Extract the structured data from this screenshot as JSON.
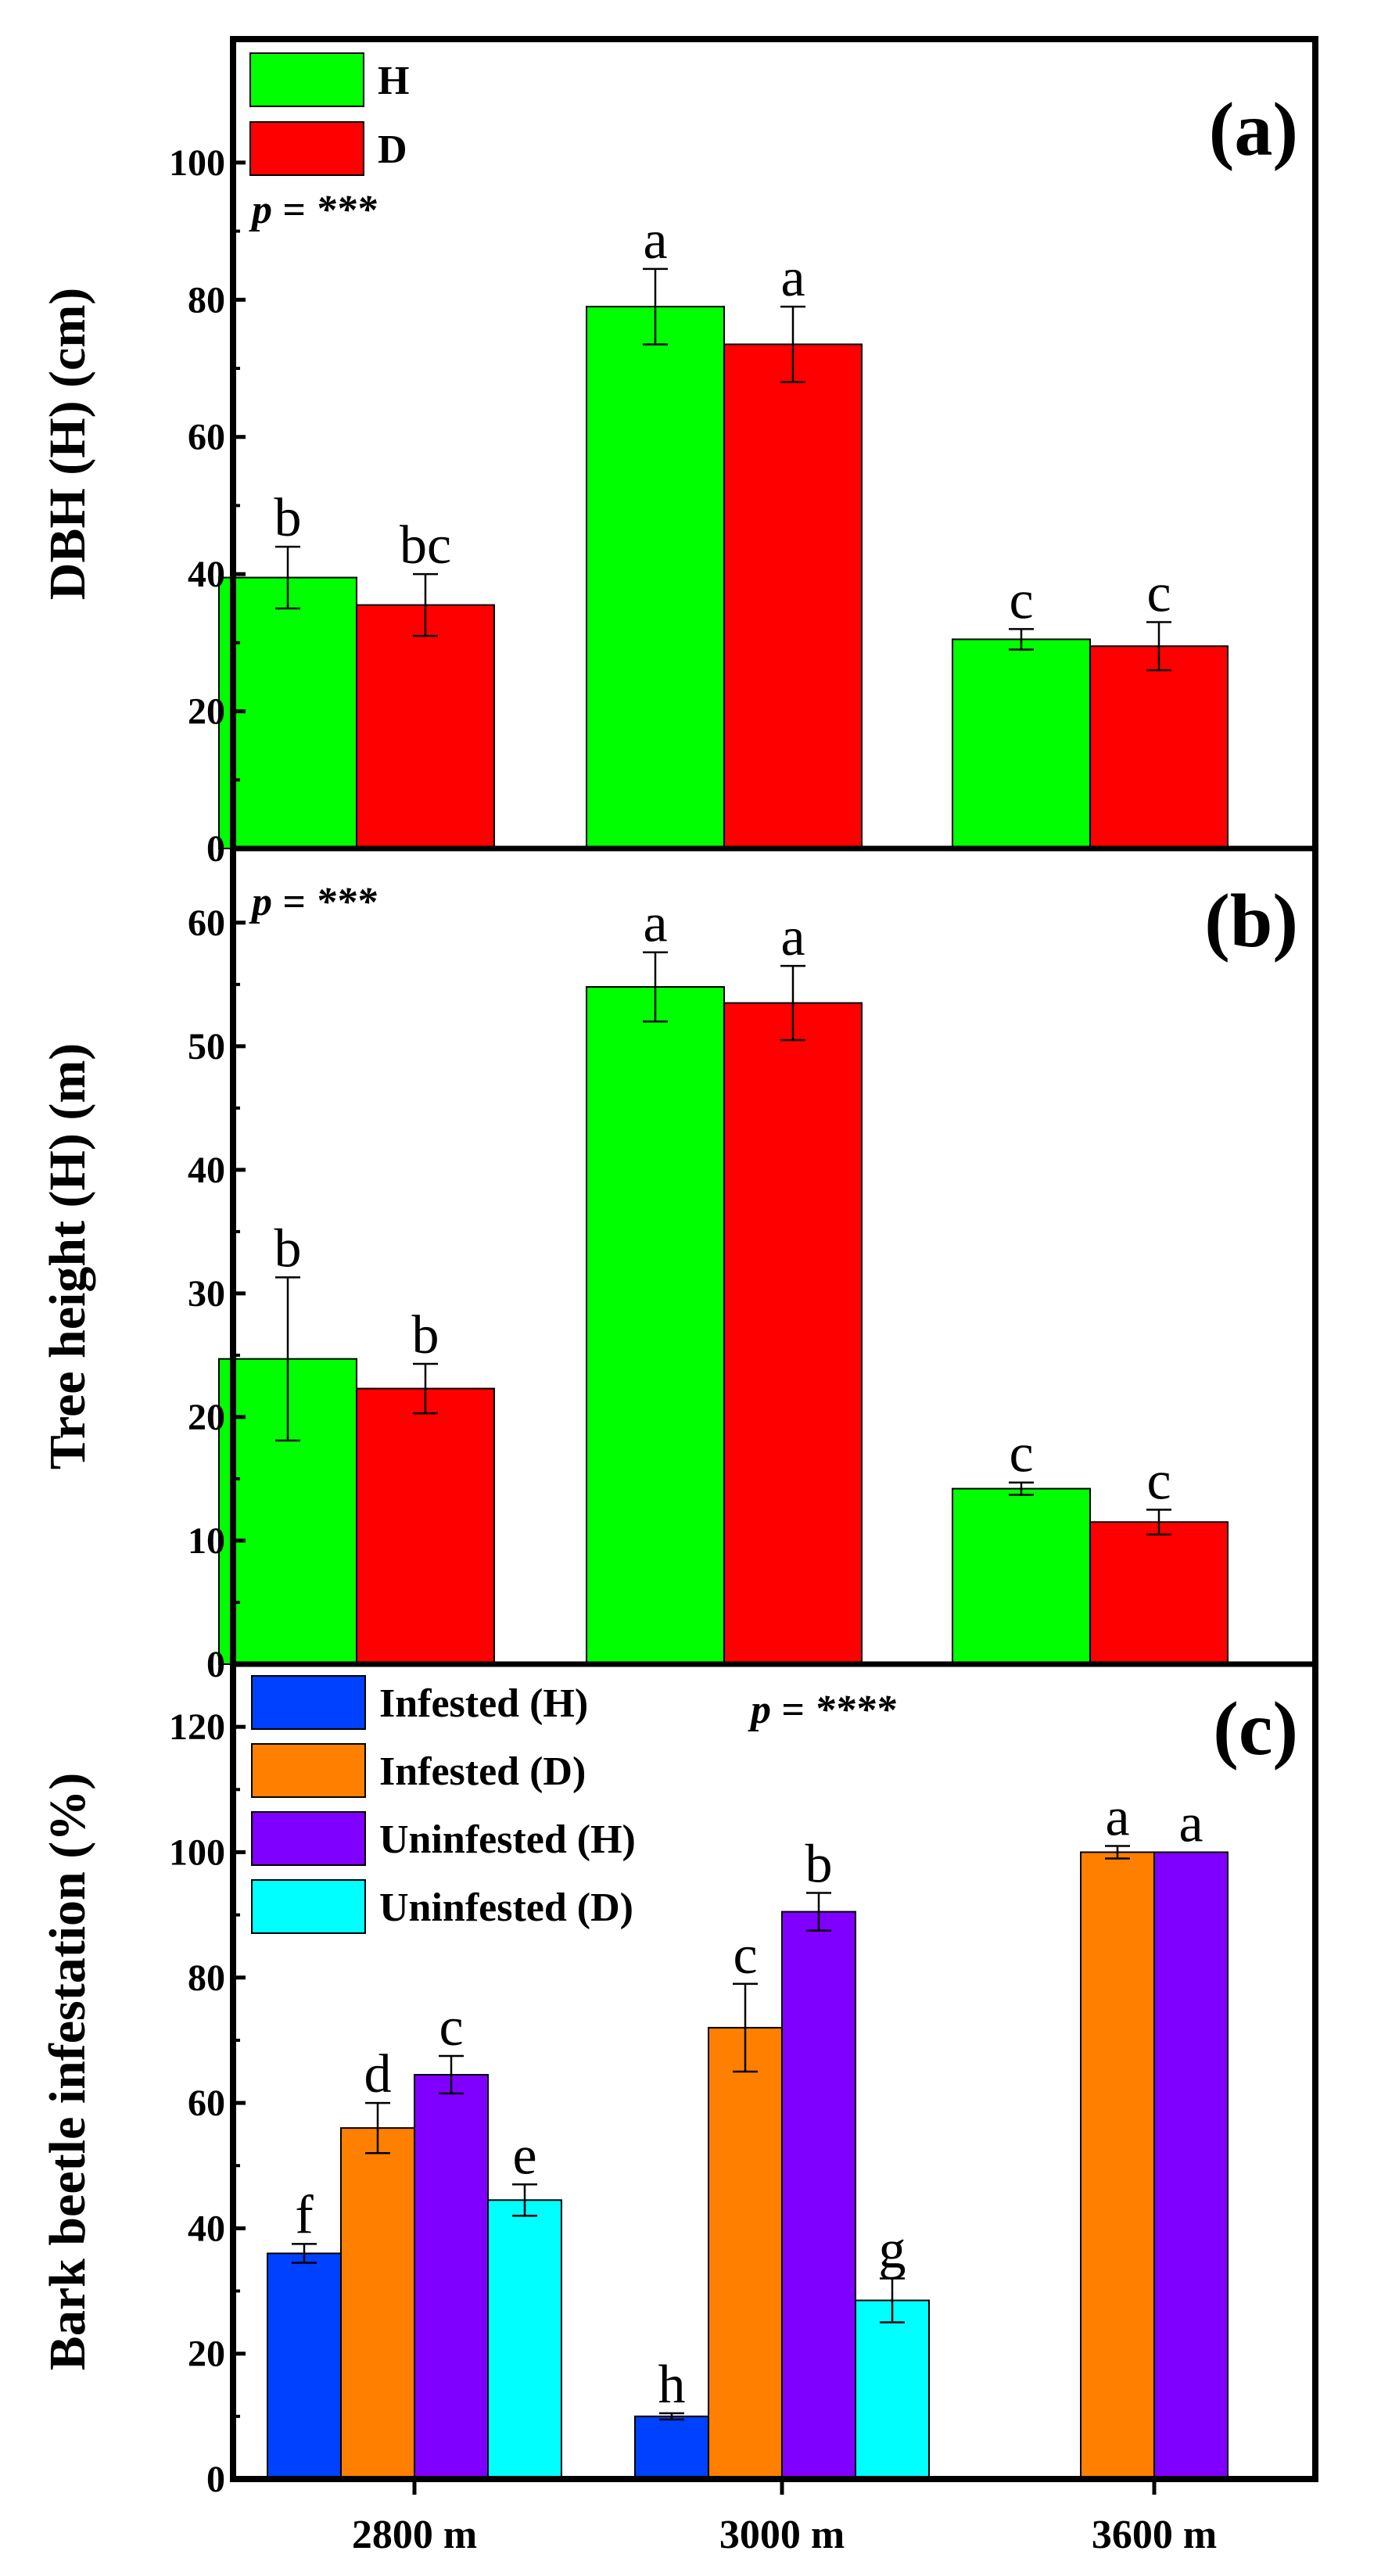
{
  "chart_data": [
    {
      "panel": "(a)",
      "type": "bar",
      "ylabel": "DBH (H) (cm)",
      "ylim": [
        0,
        118
      ],
      "yticks": [
        0,
        20,
        40,
        60,
        80,
        100
      ],
      "categories": [
        "2800 m",
        "3000 m",
        "3600 m"
      ],
      "annotation": "p = ***",
      "legend": [
        "H",
        "D"
      ],
      "legend_position": "top-left",
      "series": [
        {
          "name": "H",
          "color": "#00ff00",
          "values": [
            39.5,
            79,
            30.5
          ],
          "errors": [
            4.5,
            5.5,
            1.5
          ],
          "labels": [
            "b",
            "a",
            "c"
          ]
        },
        {
          "name": "D",
          "color": "#ff0000",
          "values": [
            35.5,
            73.5,
            29.5
          ],
          "errors": [
            4.5,
            5.5,
            3.5
          ],
          "labels": [
            "bc",
            "a",
            "c"
          ]
        }
      ]
    },
    {
      "panel": "(b)",
      "type": "bar",
      "ylabel": "Tree height (H) (m)",
      "ylim": [
        0,
        66
      ],
      "yticks": [
        0,
        10,
        20,
        30,
        40,
        50,
        60
      ],
      "categories": [
        "2800 m",
        "3000 m",
        "3600 m"
      ],
      "annotation": "p = ***",
      "series": [
        {
          "name": "H",
          "color": "#00ff00",
          "values": [
            24.7,
            54.8,
            14.2
          ],
          "errors": [
            6.6,
            2.8,
            0.5
          ],
          "labels": [
            "b",
            "a",
            "c"
          ]
        },
        {
          "name": "D",
          "color": "#ff0000",
          "values": [
            22.3,
            53.5,
            11.5
          ],
          "errors": [
            2.0,
            3.0,
            1.0
          ],
          "labels": [
            "b",
            "a",
            "c"
          ]
        }
      ]
    },
    {
      "panel": "(c)",
      "type": "bar",
      "ylabel": "Bark beetle infestation (%)",
      "xlabel": "",
      "ylim": [
        0,
        130
      ],
      "yticks": [
        0,
        20,
        40,
        60,
        80,
        100,
        120
      ],
      "categories": [
        "2800 m",
        "3000 m",
        "3600 m"
      ],
      "annotation": "p = ****",
      "legend": [
        "Infested (H)",
        "Infested (D)",
        "Uninfested (H)",
        "Uninfested (D)"
      ],
      "legend_position": "top-left",
      "series": [
        {
          "name": "Infested (H)",
          "color": "#0040ff",
          "values": [
            36,
            10,
            null
          ],
          "errors": [
            1.5,
            0.5,
            null
          ],
          "labels": [
            "f",
            "h",
            null
          ]
        },
        {
          "name": "Infested (D)",
          "color": "#ff8000",
          "values": [
            56,
            72,
            100
          ],
          "errors": [
            4.0,
            7.0,
            1.0
          ],
          "labels": [
            "d",
            "c",
            "a"
          ]
        },
        {
          "name": "Uninfested (H)",
          "color": "#8000ff",
          "values": [
            64.5,
            90.5,
            100
          ],
          "errors": [
            3.0,
            3.0,
            0
          ],
          "labels": [
            "c",
            "b",
            "a"
          ]
        },
        {
          "name": "Uninfested (D)",
          "color": "#00ffff",
          "values": [
            44.5,
            28.5,
            null
          ],
          "errors": [
            2.5,
            3.5,
            null
          ],
          "labels": [
            "e",
            "g",
            null
          ]
        }
      ]
    }
  ]
}
